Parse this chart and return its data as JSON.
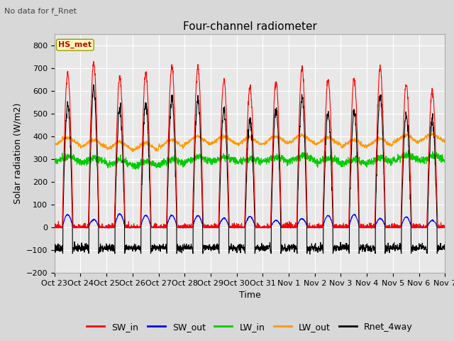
{
  "title": "Four-channel radiometer",
  "subtitle": "No data for f_Rnet",
  "ylabel": "Solar radiation (W/m2)",
  "xlabel": "Time",
  "annotation": "HS_met",
  "ylim": [
    -200,
    850
  ],
  "yticks": [
    -200,
    -100,
    0,
    100,
    200,
    300,
    400,
    500,
    600,
    700,
    800
  ],
  "x_labels": [
    "Oct 23",
    "Oct 24",
    "Oct 25",
    "Oct 26",
    "Oct 27",
    "Oct 28",
    "Oct 29",
    "Oct 30",
    "Oct 31",
    "Nov 1",
    "Nov 2",
    "Nov 3",
    "Nov 4",
    "Nov 5",
    "Nov 6",
    "Nov 7"
  ],
  "n_days": 15,
  "series": {
    "SW_in": {
      "color": "#ff0000",
      "lw": 0.8
    },
    "SW_out": {
      "color": "#0000ff",
      "lw": 0.8
    },
    "LW_in": {
      "color": "#00cc00",
      "lw": 0.8
    },
    "LW_out": {
      "color": "#ff9900",
      "lw": 0.8
    },
    "Rnet_4way": {
      "color": "#000000",
      "lw": 0.8
    }
  },
  "bg_color": "#d8d8d8",
  "plot_bg": "#e8e8e8",
  "grid_color": "#ffffff",
  "title_fontsize": 11,
  "label_fontsize": 9,
  "tick_fontsize": 8,
  "legend_fontsize": 9
}
